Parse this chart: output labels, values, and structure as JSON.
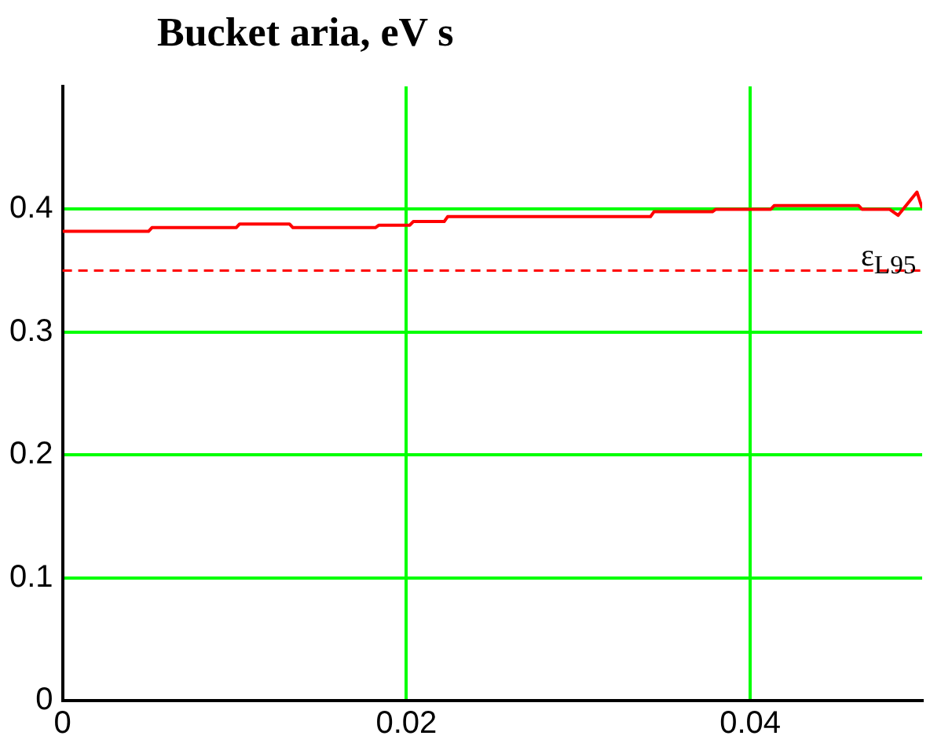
{
  "chart_data": {
    "type": "line",
    "title": "Bucket aria, eV s",
    "x": [
      0,
      0.005,
      0.0052,
      0.0101,
      0.0103,
      0.0132,
      0.0134,
      0.0182,
      0.0184,
      0.0202,
      0.0204,
      0.0222,
      0.0224,
      0.0342,
      0.0344,
      0.0378,
      0.038,
      0.0412,
      0.0414,
      0.0463,
      0.0465,
      0.0481,
      0.0486,
      0.0497,
      0.05
    ],
    "series": [
      {
        "color": "#ff0000",
        "values": [
          0.382,
          0.382,
          0.385,
          0.385,
          0.388,
          0.388,
          0.385,
          0.385,
          0.387,
          0.387,
          0.39,
          0.39,
          0.394,
          0.394,
          0.398,
          0.398,
          0.4,
          0.4,
          0.403,
          0.403,
          0.4,
          0.4,
          0.395,
          0.414,
          0.401
        ]
      }
    ],
    "xlim": [
      0,
      0.05
    ],
    "xticks": [
      0,
      0.02,
      0.04
    ],
    "ylim": [
      0,
      0.5
    ],
    "yticks": [
      0,
      0.1,
      0.2,
      0.3,
      0.4
    ],
    "grid": true,
    "legend": false,
    "marker": "none",
    "line_style": "solid",
    "ref_lines": [
      {
        "axis": "y",
        "value": 0.35,
        "label": "ε$_{L95}$",
        "color": "#ff0000",
        "line_style": "dashed"
      }
    ]
  }
}
